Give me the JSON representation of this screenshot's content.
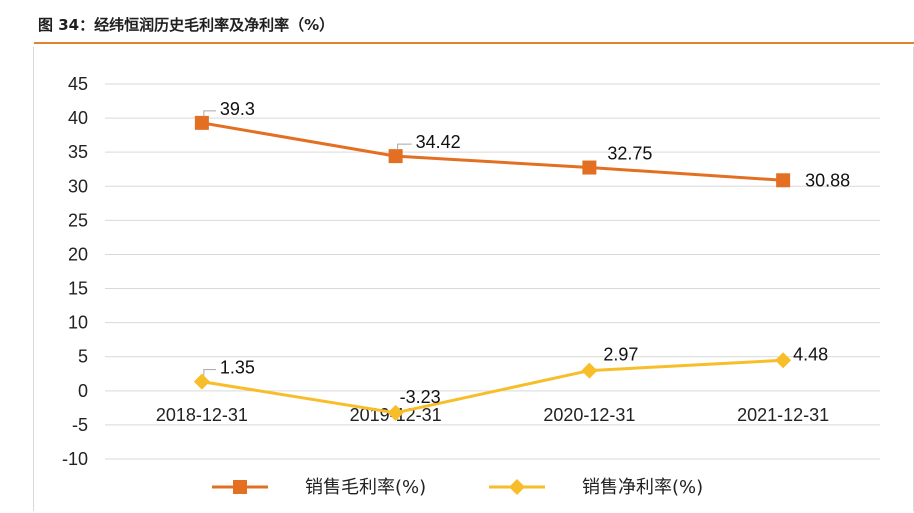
{
  "header": {
    "title": "图 34：经纬恒润历史毛利率及净利率（%）"
  },
  "colors": {
    "gross": "#E37022",
    "net": "#F7BE2A",
    "grid": "#d9d9d9",
    "rule": "#E2832F"
  },
  "chart_data": {
    "type": "line",
    "categories": [
      "2018-12-31",
      "2019-12-31",
      "2020-12-31",
      "2021-12-31"
    ],
    "ylim": [
      -10,
      45
    ],
    "yticks": [
      "45",
      "40",
      "35",
      "30",
      "25",
      "20",
      "15",
      "10",
      "5",
      "0",
      "-5",
      "-10"
    ],
    "grid": true,
    "legend_position": "bottom",
    "series": [
      {
        "name": "销售毛利率(%)",
        "marker": "square",
        "values": [
          39.3,
          34.42,
          32.75,
          30.88
        ],
        "labels": [
          "39.3",
          "34.42",
          "32.75",
          "30.88"
        ]
      },
      {
        "name": "销售净利率(%)",
        "marker": "diamond",
        "values": [
          1.35,
          -3.23,
          2.97,
          4.48
        ],
        "labels": [
          "1.35",
          "-3.23",
          "2.97",
          "4.48"
        ]
      }
    ]
  }
}
